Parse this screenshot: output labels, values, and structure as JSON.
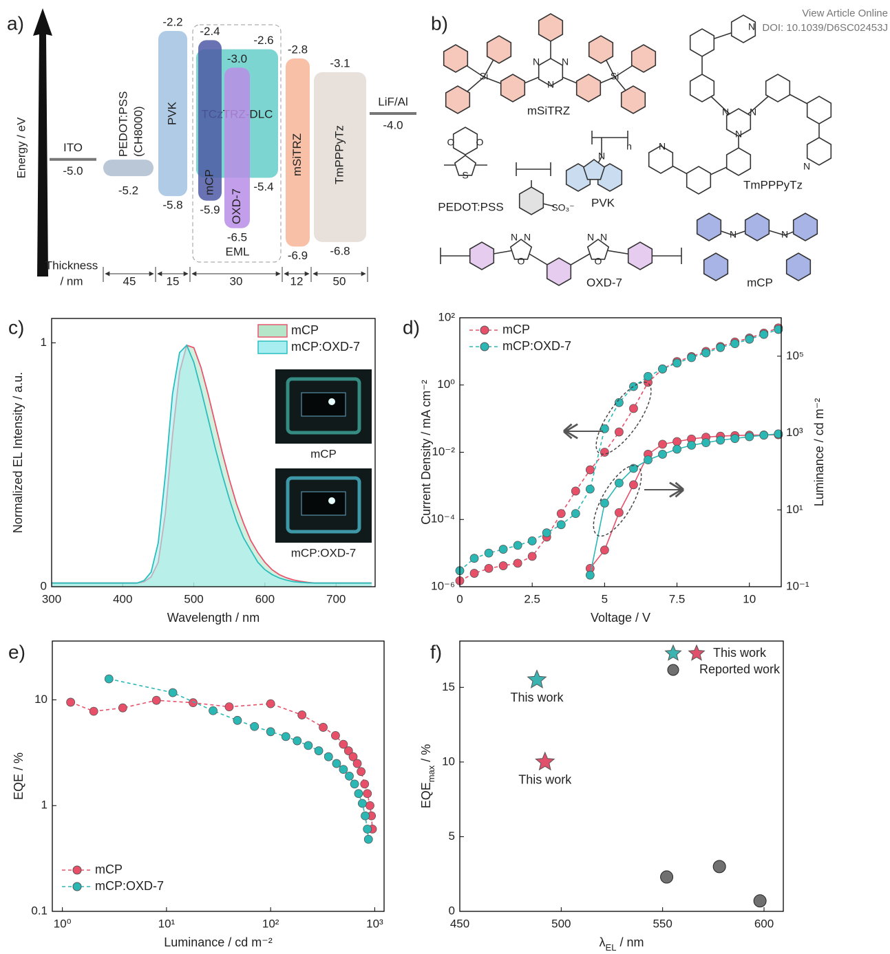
{
  "header": {
    "link": "View Article Online",
    "doi": "DOI: 10.1039/D6SC02453J"
  },
  "energy_diagram": {
    "label": "a)",
    "axis_label": "Energy / eV",
    "thickness_label": [
      "Thickness",
      "/ nm"
    ],
    "electrodes": [
      {
        "name": "ITO",
        "level": {
          "value": -5,
          "label": "-5.0"
        }
      },
      {
        "name": "LiF/Al",
        "level": {
          "value": -4,
          "label": "-4.0"
        }
      }
    ],
    "layers": [
      {
        "name": "PEDOT:PSS",
        "note": "(CH8000)",
        "homo": -5.2,
        "thickness": 45,
        "color": "#b9c7d6"
      },
      {
        "name": "PVK",
        "lumo": -2.2,
        "homo": -5.8,
        "thickness": 15,
        "color": "#a7c5e3"
      },
      {
        "name": "TCzTRZ-DLC",
        "lumo": -2.6,
        "homo": -5.4,
        "color": "#6fd0cc"
      },
      {
        "name": "mCP",
        "lumo": -2.4,
        "homo": -5.9,
        "color": "#4f5aa6"
      },
      {
        "name": "OXD-7",
        "lumo": {
          "value": -3,
          "label": "-3.0"
        },
        "homo": -6.5,
        "color": "#b98de6"
      },
      {
        "name": "mSiTRZ",
        "lumo": -2.8,
        "homo": -6.9,
        "thickness": 12,
        "color": "#f8b99e"
      },
      {
        "name": "TmPPPyTz",
        "lumo": -3.1,
        "homo": -6.8,
        "thickness": 50,
        "color": "#e6ddd6"
      }
    ],
    "eml": {
      "name": "EML",
      "thickness": 30
    }
  },
  "structures": {
    "label": "b)",
    "names": [
      "mSiTRZ",
      "PEDOT:PSS",
      "PVK",
      "TmPPPyTz",
      "OXD-7",
      "mCP"
    ],
    "atoms": [
      "Si",
      "Si",
      "N",
      "N",
      "N",
      "O",
      "O",
      "S",
      "SO₃⁻",
      "N",
      "n",
      "N",
      "N",
      "N",
      "N",
      "N",
      "N",
      "N",
      "N",
      "O",
      "N",
      "N",
      "O",
      "N",
      "N"
    ]
  },
  "chart_data": [
    {
      "type": "area",
      "label": "c)",
      "xlabel": "Wavelength / nm",
      "ylabel": "Normalized EL Intensity / a.u.",
      "x": [
        300,
        310,
        320,
        330,
        340,
        350,
        360,
        370,
        380,
        390,
        400,
        410,
        420,
        430,
        440,
        450,
        460,
        470,
        480,
        490,
        500,
        510,
        520,
        530,
        540,
        550,
        560,
        570,
        580,
        590,
        600,
        610,
        620,
        630,
        640,
        650,
        660,
        670,
        680,
        690,
        700,
        710,
        720,
        730,
        740,
        750
      ],
      "xlim": [
        300,
        755
      ],
      "xticks": [
        300,
        400,
        500,
        600,
        700
      ],
      "ylim": [
        0,
        1.1
      ],
      "yticks": [
        0,
        1
      ],
      "legend": "upper right",
      "series": [
        {
          "name": "mCP",
          "color": "#e8556d",
          "fill": "#b5e6c9",
          "values": [
            0.015,
            0.015,
            0.015,
            0.015,
            0.015,
            0.015,
            0.015,
            0.015,
            0.015,
            0.015,
            0.015,
            0.015,
            0.015,
            0.02,
            0.04,
            0.1,
            0.3,
            0.62,
            0.88,
            0.99,
            0.98,
            0.9,
            0.79,
            0.67,
            0.55,
            0.44,
            0.34,
            0.26,
            0.19,
            0.14,
            0.1,
            0.07,
            0.05,
            0.037,
            0.028,
            0.022,
            0.018,
            0.015,
            0.015,
            0.015,
            0.015,
            0.015,
            0.015,
            0.015,
            0.015,
            0.015
          ]
        },
        {
          "name": "mCP:OXD-7",
          "color": "#2bbdbd",
          "fill": "#a6eef0",
          "values": [
            0.015,
            0.015,
            0.015,
            0.015,
            0.015,
            0.015,
            0.015,
            0.015,
            0.015,
            0.015,
            0.015,
            0.015,
            0.015,
            0.025,
            0.06,
            0.18,
            0.46,
            0.79,
            0.96,
            0.99,
            0.92,
            0.81,
            0.69,
            0.57,
            0.46,
            0.36,
            0.27,
            0.2,
            0.15,
            0.1,
            0.07,
            0.05,
            0.036,
            0.027,
            0.021,
            0.018,
            0.016,
            0.015,
            0.015,
            0.015,
            0.015,
            0.015,
            0.015,
            0.015,
            0.015,
            0.015
          ]
        }
      ],
      "insets": [
        "mCP",
        "mCP:OXD-7"
      ]
    },
    {
      "type": "line",
      "label": "d)",
      "xlabel": "Voltage / V",
      "ylabel": "Current Density / mA cm⁻²",
      "y2label": "Luminance / cd m⁻²",
      "x": [
        0,
        0.5,
        1,
        1.5,
        2,
        2.5,
        3,
        3.5,
        4,
        4.5,
        5,
        5.5,
        6,
        6.5,
        7,
        7.5,
        8,
        8.5,
        9,
        9.5,
        10,
        10.5,
        11
      ],
      "xlim": [
        0,
        11.1
      ],
      "xticks": [
        0,
        2.5,
        5,
        7.5,
        10
      ],
      "ylog": true,
      "ylim": [
        1e-06,
        100
      ],
      "yticks": [
        {
          "value": 1e-06,
          "label": "10⁻⁶"
        },
        {
          "value": 0.0001,
          "label": "10⁻⁴"
        },
        {
          "value": 0.01,
          "label": "10⁻²"
        },
        {
          "value": 1,
          "label": "10⁰"
        },
        {
          "value": 100,
          "label": "10²"
        }
      ],
      "y2log": true,
      "y2lim": [
        0.1,
        1000000
      ],
      "y2ticks": [
        {
          "value": 0.1,
          "label": "10⁻¹"
        },
        {
          "value": 10,
          "label": "10¹"
        },
        {
          "value": 1000,
          "label": "10³"
        },
        {
          "value": 100000,
          "label": "10⁵"
        }
      ],
      "legend": "upper left",
      "series": [
        {
          "name": "mCP",
          "color": "#e8506a",
          "line_style": "dashed",
          "values": [
            1.5e-06,
            2.5e-06,
            3.5e-06,
            4.2e-06,
            5e-06,
            8e-06,
            3e-05,
            0.00015,
            0.0007,
            0.003,
            0.01,
            0.04,
            0.2,
            1.2,
            3,
            5,
            7,
            10,
            14,
            19,
            25,
            35,
            50
          ]
        },
        {
          "name": "mCP:OXD-7",
          "color": "#2bb8b5",
          "line_style": "dashed",
          "values": [
            3e-06,
            7e-06,
            1e-05,
            1.3e-05,
            1.7e-05,
            2.3e-05,
            4e-05,
            7e-05,
            0.00015,
            0.0008,
            0.05,
            0.3,
            0.9,
            1.8,
            3,
            4.5,
            6.5,
            9,
            13,
            17,
            23,
            32,
            45
          ]
        },
        {
          "name": "mCP",
          "color": "#e8506a",
          "line_style": "solid",
          "axis": "y2",
          "values": [
            null,
            null,
            null,
            null,
            null,
            null,
            null,
            null,
            null,
            0.3,
            0.9,
            8.5,
            45,
            280,
            510,
            600,
            700,
            780,
            830,
            860,
            880,
            890,
            900
          ]
        },
        {
          "name": "mCP:OXD-7",
          "color": "#2bb8b5",
          "line_style": "solid",
          "axis": "y2",
          "values": [
            null,
            null,
            null,
            null,
            null,
            null,
            null,
            null,
            null,
            0.2,
            15,
            50,
            120,
            200,
            280,
            380,
            480,
            560,
            650,
            720,
            800,
            880,
            950
          ]
        }
      ]
    },
    {
      "type": "line",
      "label": "e)",
      "xlabel": "Luminance / cd m⁻²",
      "ylabel": "EQE / %",
      "xlog": true,
      "xlim": [
        0.8,
        1230
      ],
      "xticks": [
        {
          "value": 1,
          "label": "10⁰"
        },
        {
          "value": 10,
          "label": "10¹"
        },
        {
          "value": 100,
          "label": "10²"
        },
        {
          "value": 1000,
          "label": "10³"
        }
      ],
      "ylog": true,
      "ylim": [
        0.1,
        36
      ],
      "yticks": [
        0.1,
        1,
        10
      ],
      "legend": "lower left",
      "series": [
        {
          "name": "mCP",
          "color": "#e8506a",
          "line_style": "dashed",
          "x": [
            1.2,
            2,
            3.8,
            8,
            18,
            40,
            100,
            200,
            320,
            420,
            500,
            560,
            620,
            680,
            740,
            800,
            850,
            900,
            930,
            950
          ],
          "values": [
            9.5,
            7.8,
            8.4,
            9.9,
            9.4,
            8.6,
            9.2,
            7.2,
            5.5,
            4.6,
            3.8,
            3.3,
            2.9,
            2.5,
            2.1,
            1.6,
            1.3,
            1,
            0.8,
            0.6
          ]
        },
        {
          "name": "mCP:OXD-7",
          "color": "#2bb8b5",
          "line_style": "dashed",
          "x": [
            2.8,
            11.5,
            28,
            48,
            70,
            100,
            140,
            180,
            230,
            290,
            360,
            430,
            500,
            570,
            640,
            700,
            760,
            810,
            850,
            870
          ],
          "values": [
            15.8,
            11.7,
            7.9,
            6.4,
            5.6,
            5,
            4.5,
            4.1,
            3.7,
            3.3,
            2.9,
            2.5,
            2.2,
            1.9,
            1.6,
            1.3,
            1.05,
            0.8,
            0.6,
            0.48
          ]
        }
      ]
    },
    {
      "type": "scatter",
      "label": "f)",
      "xlabel": [
        "λ",
        "EL",
        " / nm"
      ],
      "ylabel": [
        "EQE",
        "max",
        " / %"
      ],
      "xlim": [
        450,
        609.5
      ],
      "xticks": [
        450,
        500,
        550,
        600
      ],
      "ylim": [
        0,
        18.1
      ],
      "yticks": [
        0,
        5,
        10,
        15
      ],
      "legend": "upper right",
      "series": [
        {
          "name": "This work",
          "marker": "star",
          "colors": [
            "#3bb3b0",
            "#e0506a"
          ],
          "x": [
            488,
            492
          ],
          "values": [
            15.5,
            10
          ],
          "annotations": [
            "This work",
            "This work"
          ]
        },
        {
          "name": "Reported work",
          "marker": "circle",
          "color": "#707070",
          "x": [
            552,
            578,
            598
          ],
          "values": [
            2.3,
            3,
            0.7
          ]
        }
      ]
    }
  ]
}
